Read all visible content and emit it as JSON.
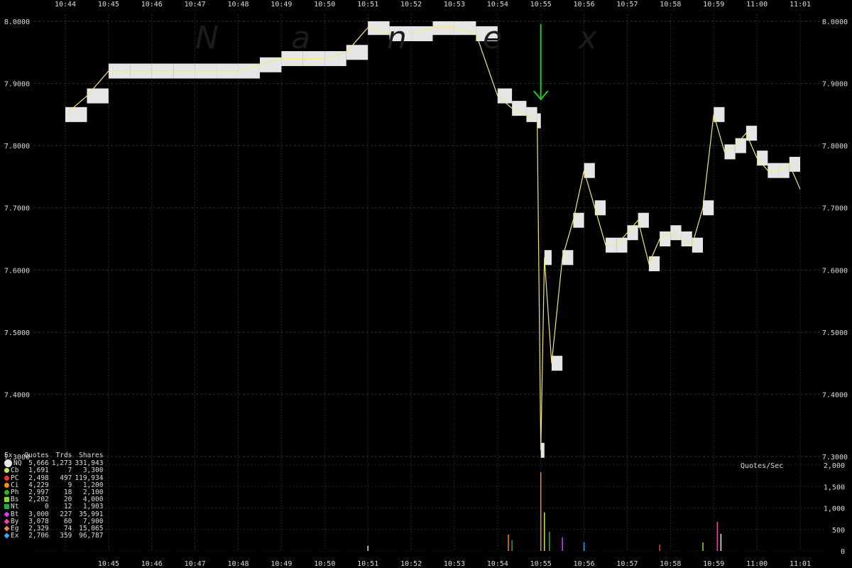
{
  "watermark": [
    "N",
    "a",
    "n",
    "e",
    "x"
  ],
  "legend": {
    "headers": {
      "ex": "Ex",
      "quotes": "Quotes",
      "trds": "Trds",
      "shares": "Shares"
    },
    "rows": [
      {
        "ex": "NQ",
        "quotes": "5,666",
        "trds": "1,273",
        "shares": "331,943",
        "color": "#e8e8e8",
        "shape": "big"
      },
      {
        "ex": "Cb",
        "quotes": "1,691",
        "trds": "7",
        "shares": "3,300",
        "color": "#c8e64a",
        "shape": "circle"
      },
      {
        "ex": "PC",
        "quotes": "2,498",
        "trds": "497",
        "shares": "119,934",
        "color": "#ff3030",
        "shape": "circle"
      },
      {
        "ex": "Ci",
        "quotes": "4,229",
        "trds": "9",
        "shares": "1,200",
        "color": "#ff8c00",
        "shape": "circle"
      },
      {
        "ex": "Ph",
        "quotes": "2,997",
        "trds": "18",
        "shares": "2,100",
        "color": "#22bb22",
        "shape": "circle"
      },
      {
        "ex": "Bs",
        "quotes": "2,202",
        "trds": "20",
        "shares": "4,000",
        "color": "#88dd22",
        "shape": "sq"
      },
      {
        "ex": "Nt",
        "quotes": "0",
        "trds": "12",
        "shares": "1,903",
        "color": "#22aa44",
        "shape": "sq"
      },
      {
        "ex": "Bt",
        "quotes": "3,000",
        "trds": "227",
        "shares": "35,991",
        "color": "#cc44ff",
        "shape": "dia"
      },
      {
        "ex": "By",
        "quotes": "3,078",
        "trds": "60",
        "shares": "7,900",
        "color": "#ee44aa",
        "shape": "dia"
      },
      {
        "ex": "Eg",
        "quotes": "2,329",
        "trds": "74",
        "shares": "15,065",
        "color": "#ee8844",
        "shape": "dia"
      },
      {
        "ex": "Ex",
        "quotes": "2,706",
        "trds": "359",
        "shares": "96,787",
        "color": "#33aaff",
        "shape": "dia"
      }
    ]
  },
  "quotes_label": "Quotes/Sec",
  "chart_data": [
    {
      "type": "line",
      "x": [
        "10:44",
        "10:44:30",
        "10:45",
        "10:45:30",
        "10:46",
        "10:46:30",
        "10:47",
        "10:47:30",
        "10:48",
        "10:48:30",
        "10:49",
        "10:49:30",
        "10:50",
        "10:50:30",
        "10:51",
        "10:51:30",
        "10:52",
        "10:52:30",
        "10:53",
        "10:53:30",
        "10:54",
        "10:54:20",
        "10:54:40",
        "10:54:55",
        "10:55",
        "10:55:05",
        "10:55:15",
        "10:55:30",
        "10:55:45",
        "10:56",
        "10:56:15",
        "10:56:30",
        "10:56:45",
        "10:57",
        "10:57:15",
        "10:57:30",
        "10:57:45",
        "10:58",
        "10:58:15",
        "10:58:30",
        "10:58:45",
        "10:59",
        "10:59:15",
        "10:59:30",
        "10:59:45",
        "11:00",
        "11:00:15",
        "11:00:30",
        "11:00:45",
        "11:01"
      ],
      "series": [
        {
          "values": [
            7.85,
            7.88,
            7.92,
            7.92,
            7.92,
            7.92,
            7.92,
            7.92,
            7.92,
            7.93,
            7.94,
            7.94,
            7.94,
            7.95,
            7.99,
            7.98,
            7.98,
            7.99,
            7.99,
            7.98,
            7.88,
            7.86,
            7.85,
            7.84,
            7.31,
            7.62,
            7.45,
            7.62,
            7.68,
            7.76,
            7.7,
            7.64,
            7.64,
            7.66,
            7.68,
            7.61,
            7.65,
            7.66,
            7.65,
            7.64,
            7.7,
            7.85,
            7.79,
            7.8,
            7.82,
            7.78,
            7.76,
            7.76,
            7.77,
            7.73
          ]
        }
      ],
      "ylim": [
        7.3,
        8.0
      ],
      "yticks": [
        "7.3000",
        "7.4000",
        "7.5000",
        "7.6000",
        "7.7000",
        "7.8000",
        "7.9000",
        "8.0000"
      ],
      "xticks": [
        "10:44",
        "10:45",
        "10:46",
        "10:47",
        "10:48",
        "10:49",
        "10:50",
        "10:51",
        "10:52",
        "10:53",
        "10:54",
        "10:55",
        "10:56",
        "10:57",
        "10:58",
        "10:59",
        "11:00",
        "11:01"
      ],
      "grid": true,
      "annotation": {
        "type": "arrow",
        "at": "10:55",
        "color": "#22cc22"
      }
    },
    {
      "type": "bar",
      "ylim": [
        0,
        2000
      ],
      "yticks": [
        "0",
        "500",
        "1,000",
        "1,500",
        "2,000"
      ],
      "xticks": [
        "10:45",
        "10:46",
        "10:47",
        "10:48",
        "10:49",
        "10:50",
        "10:51",
        "10:52",
        "10:53",
        "10:54",
        "10:55",
        "10:56",
        "10:57",
        "10:58",
        "10:59",
        "11:00",
        "11:01"
      ],
      "spikes": [
        {
          "t": "10:51:00",
          "v": 120
        },
        {
          "t": "10:54:15",
          "v": 380
        },
        {
          "t": "10:54:20",
          "v": 250
        },
        {
          "t": "10:55:00",
          "v": 1830
        },
        {
          "t": "10:55:05",
          "v": 900
        },
        {
          "t": "10:55:12",
          "v": 450
        },
        {
          "t": "10:55:30",
          "v": 320
        },
        {
          "t": "10:56:00",
          "v": 200
        },
        {
          "t": "10:57:45",
          "v": 150
        },
        {
          "t": "10:58:45",
          "v": 200
        },
        {
          "t": "10:59:05",
          "v": 680
        },
        {
          "t": "10:59:10",
          "v": 400
        }
      ]
    }
  ]
}
